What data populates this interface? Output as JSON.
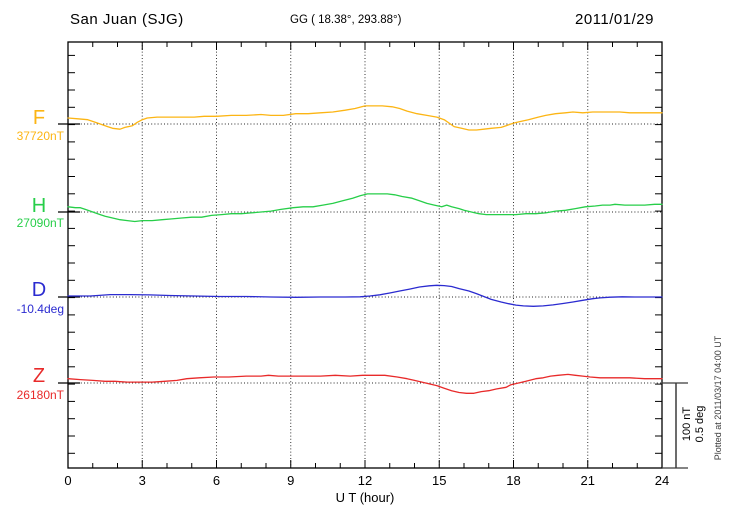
{
  "header": {
    "station": "San Juan (SJG)",
    "coordinates": "GG ( 18.38°, 293.88°)",
    "date": "2011/01/29"
  },
  "x_axis": {
    "label": "U T (hour)",
    "ticks": [
      "0",
      "3",
      "6",
      "9",
      "12",
      "15",
      "18",
      "21",
      "24"
    ]
  },
  "traces": [
    {
      "key": "F",
      "label": "F",
      "value_label": "37720nT",
      "color": "#fcb514"
    },
    {
      "key": "H",
      "label": "H",
      "value_label": "27090nT",
      "color": "#27ce49"
    },
    {
      "key": "D",
      "label": "D",
      "value_label": "-10.4deg",
      "color": "#2b2bd0"
    },
    {
      "key": "Z",
      "label": "Z",
      "value_label": "26180nT",
      "color": "#e82a2a"
    }
  ],
  "scale_bar": {
    "nt": "100 nT",
    "deg": "0.5 deg"
  },
  "plotted_at": "Plotted at 2011/03/17 04:00 UT",
  "chart_data": {
    "type": "line",
    "title": "San Juan (SJG) magnetogram 2011/01/29",
    "xlabel": "U T (hour)",
    "x_range": [
      0,
      24
    ],
    "x_major_tick_interval": 3,
    "x_minor_tick_interval": 1,
    "grid": "dotted vertical at 3h intervals, dotted horizontal at each trace baseline",
    "legend_position": "left margin trace labels",
    "scale_per_division": {
      "nT": 100,
      "deg": 0.5
    },
    "series": [
      {
        "name": "F",
        "units": "nT",
        "baseline_value": 37720,
        "color": "#fcb514",
        "offsets": [
          [
            0,
            7
          ],
          [
            0.4,
            6
          ],
          [
            0.8,
            5
          ],
          [
            1.1,
            2
          ],
          [
            1.3,
            0
          ],
          [
            1.6,
            -3
          ],
          [
            1.8,
            -5
          ],
          [
            2.1,
            -6
          ],
          [
            2.3,
            -4
          ],
          [
            2.6,
            -2
          ],
          [
            2.8,
            2
          ],
          [
            3.0,
            5
          ],
          [
            3.2,
            7
          ],
          [
            3.6,
            8
          ],
          [
            4.0,
            8
          ],
          [
            4.6,
            8
          ],
          [
            5.1,
            8
          ],
          [
            5.5,
            9
          ],
          [
            6.0,
            9
          ],
          [
            6.6,
            10
          ],
          [
            7.2,
            10
          ],
          [
            7.8,
            11
          ],
          [
            8.2,
            10
          ],
          [
            8.7,
            10
          ],
          [
            9.2,
            12
          ],
          [
            9.7,
            12
          ],
          [
            10.2,
            13
          ],
          [
            10.7,
            14
          ],
          [
            11.2,
            16
          ],
          [
            11.6,
            18
          ],
          [
            12.0,
            21
          ],
          [
            12.4,
            21
          ],
          [
            12.7,
            21
          ],
          [
            13.1,
            20
          ],
          [
            13.4,
            18
          ],
          [
            13.7,
            15
          ],
          [
            14.1,
            12
          ],
          [
            14.5,
            10
          ],
          [
            14.9,
            8
          ],
          [
            15.2,
            5
          ],
          [
            15.4,
            1
          ],
          [
            15.6,
            -3
          ],
          [
            15.9,
            -5
          ],
          [
            16.2,
            -7
          ],
          [
            16.5,
            -7
          ],
          [
            16.8,
            -6
          ],
          [
            17.1,
            -5
          ],
          [
            17.5,
            -4
          ],
          [
            17.7,
            -2
          ],
          [
            18.0,
            1
          ],
          [
            18.3,
            3
          ],
          [
            18.6,
            5
          ],
          [
            19.0,
            8
          ],
          [
            19.3,
            10
          ],
          [
            19.7,
            12
          ],
          [
            20.1,
            13
          ],
          [
            20.4,
            14
          ],
          [
            20.8,
            13
          ],
          [
            21.2,
            14
          ],
          [
            21.6,
            14
          ],
          [
            22.0,
            14
          ],
          [
            22.3,
            14
          ],
          [
            22.7,
            13
          ],
          [
            23.2,
            13
          ],
          [
            23.6,
            13
          ],
          [
            24,
            13
          ]
        ]
      },
      {
        "name": "H",
        "units": "nT",
        "baseline_value": 27090,
        "color": "#27ce49",
        "offsets": [
          [
            0,
            6
          ],
          [
            0.3,
            5
          ],
          [
            0.5,
            5
          ],
          [
            0.7,
            3
          ],
          [
            0.9,
            1
          ],
          [
            1.1,
            -1
          ],
          [
            1.3,
            -3
          ],
          [
            1.5,
            -5
          ],
          [
            1.8,
            -7
          ],
          [
            2.1,
            -9
          ],
          [
            2.4,
            -10
          ],
          [
            2.7,
            -11
          ],
          [
            3.0,
            -10
          ],
          [
            3.4,
            -10
          ],
          [
            3.8,
            -9
          ],
          [
            4.2,
            -8
          ],
          [
            4.6,
            -7
          ],
          [
            5.0,
            -6
          ],
          [
            5.4,
            -6
          ],
          [
            5.8,
            -4
          ],
          [
            6.2,
            -3
          ],
          [
            6.6,
            -2
          ],
          [
            7.0,
            -2
          ],
          [
            7.4,
            -1
          ],
          [
            7.8,
            0
          ],
          [
            8.2,
            1
          ],
          [
            8.6,
            3
          ],
          [
            9.1,
            5
          ],
          [
            9.5,
            6
          ],
          [
            9.9,
            6
          ],
          [
            10.3,
            8
          ],
          [
            10.7,
            10
          ],
          [
            11.1,
            13
          ],
          [
            11.5,
            16
          ],
          [
            11.8,
            19
          ],
          [
            12.1,
            21
          ],
          [
            12.5,
            21
          ],
          [
            12.9,
            21
          ],
          [
            13.2,
            20
          ],
          [
            13.5,
            18
          ],
          [
            13.9,
            16
          ],
          [
            14.2,
            13
          ],
          [
            14.5,
            10
          ],
          [
            14.8,
            8
          ],
          [
            15.1,
            6
          ],
          [
            15.3,
            8
          ],
          [
            15.5,
            6
          ],
          [
            15.8,
            4
          ],
          [
            16.0,
            2
          ],
          [
            16.3,
            0
          ],
          [
            16.6,
            -2
          ],
          [
            16.9,
            -3
          ],
          [
            17.3,
            -3
          ],
          [
            17.7,
            -3
          ],
          [
            18.1,
            -3
          ],
          [
            18.5,
            -2
          ],
          [
            18.9,
            -2
          ],
          [
            19.3,
            -1
          ],
          [
            19.7,
            1
          ],
          [
            20.1,
            2
          ],
          [
            20.5,
            4
          ],
          [
            20.9,
            6
          ],
          [
            21.3,
            7
          ],
          [
            21.6,
            8
          ],
          [
            21.9,
            8
          ],
          [
            22.1,
            9
          ],
          [
            22.5,
            8
          ],
          [
            22.9,
            8
          ],
          [
            23.3,
            8
          ],
          [
            23.7,
            9
          ],
          [
            24,
            9
          ]
        ]
      },
      {
        "name": "D",
        "units": "deg",
        "baseline_value": -10.4,
        "color": "#2b2bd0",
        "offsets": [
          [
            0,
            0.006
          ],
          [
            0.9,
            0.006
          ],
          [
            1.7,
            0.014
          ],
          [
            2.5,
            0.014
          ],
          [
            3.3,
            0.012
          ],
          [
            4.1,
            0.009
          ],
          [
            5.1,
            0.006
          ],
          [
            6.1,
            0.003
          ],
          [
            7.2,
            0.003
          ],
          [
            8.2,
            0
          ],
          [
            9.2,
            -0.002
          ],
          [
            10.2,
            0
          ],
          [
            11.2,
            0
          ],
          [
            11.8,
            0.001
          ],
          [
            12.2,
            0.006
          ],
          [
            12.6,
            0.013
          ],
          [
            13.0,
            0.023
          ],
          [
            13.4,
            0.035
          ],
          [
            13.8,
            0.046
          ],
          [
            14.2,
            0.058
          ],
          [
            14.6,
            0.065
          ],
          [
            14.9,
            0.068
          ],
          [
            15.2,
            0.066
          ],
          [
            15.5,
            0.061
          ],
          [
            15.8,
            0.049
          ],
          [
            16.2,
            0.035
          ],
          [
            16.5,
            0.02
          ],
          [
            16.8,
            0.003
          ],
          [
            17.1,
            -0.014
          ],
          [
            17.5,
            -0.029
          ],
          [
            17.8,
            -0.039
          ],
          [
            18.1,
            -0.047
          ],
          [
            18.4,
            -0.052
          ],
          [
            18.8,
            -0.054
          ],
          [
            19.2,
            -0.052
          ],
          [
            19.6,
            -0.046
          ],
          [
            20.0,
            -0.038
          ],
          [
            20.4,
            -0.029
          ],
          [
            20.8,
            -0.019
          ],
          [
            21.2,
            -0.01
          ],
          [
            21.5,
            -0.005
          ],
          [
            21.9,
            -0.001
          ],
          [
            22.4,
            0.001
          ],
          [
            22.9,
            0
          ],
          [
            23.5,
            0
          ],
          [
            24,
            0
          ]
        ]
      },
      {
        "name": "Z",
        "units": "nT",
        "baseline_value": 26180,
        "color": "#e82a2a",
        "offsets": [
          [
            0,
            5
          ],
          [
            0.5,
            4
          ],
          [
            1.0,
            3
          ],
          [
            1.5,
            2
          ],
          [
            1.9,
            2
          ],
          [
            2.4,
            1
          ],
          [
            2.9,
            1
          ],
          [
            3.4,
            1
          ],
          [
            3.9,
            2
          ],
          [
            4.4,
            3
          ],
          [
            4.8,
            5
          ],
          [
            5.3,
            6
          ],
          [
            5.9,
            7
          ],
          [
            6.5,
            7
          ],
          [
            7.2,
            8
          ],
          [
            7.8,
            8
          ],
          [
            8.1,
            9
          ],
          [
            8.5,
            8
          ],
          [
            9.0,
            8
          ],
          [
            9.6,
            8
          ],
          [
            10.2,
            8
          ],
          [
            10.8,
            9
          ],
          [
            11.4,
            8
          ],
          [
            11.9,
            9
          ],
          [
            12.4,
            9
          ],
          [
            12.8,
            9
          ],
          [
            13.3,
            7
          ],
          [
            13.7,
            5
          ],
          [
            14.0,
            3
          ],
          [
            14.3,
            1
          ],
          [
            14.6,
            -1
          ],
          [
            14.9,
            -3
          ],
          [
            15.2,
            -6
          ],
          [
            15.5,
            -9
          ],
          [
            15.8,
            -11
          ],
          [
            16.1,
            -12
          ],
          [
            16.4,
            -12
          ],
          [
            16.7,
            -10
          ],
          [
            17.0,
            -9
          ],
          [
            17.3,
            -7
          ],
          [
            17.7,
            -5
          ],
          [
            17.9,
            -2
          ],
          [
            18.2,
            0
          ],
          [
            18.5,
            2
          ],
          [
            18.9,
            5
          ],
          [
            19.2,
            6
          ],
          [
            19.5,
            8
          ],
          [
            19.8,
            9
          ],
          [
            20.2,
            10
          ],
          [
            20.5,
            9
          ],
          [
            20.8,
            8
          ],
          [
            21.1,
            7
          ],
          [
            21.5,
            6
          ],
          [
            22.1,
            6
          ],
          [
            22.7,
            6
          ],
          [
            23.3,
            5
          ],
          [
            23.7,
            5
          ],
          [
            24,
            5
          ]
        ]
      }
    ]
  }
}
